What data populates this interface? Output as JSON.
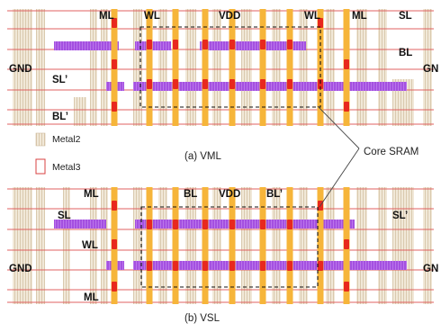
{
  "panels": [
    {
      "caption": "(a) VML",
      "labels": {
        "ml_left": "ML",
        "wl_left": "WL",
        "vdd": "VDD",
        "wl_right": "WL",
        "ml_right": "ML",
        "sl_right": "SL",
        "bl_right": "BL",
        "gnd_left": "GND",
        "gnd_right": "GN",
        "sl_prime": "SL’",
        "bl_prime": "BL’"
      }
    },
    {
      "caption": "(b) VSL",
      "labels": {
        "ml_top": "ML",
        "bl": "BL",
        "vdd": "VDD",
        "bl_prime": "BL’",
        "sl_left": "SL",
        "sl_prime_right": "SL’",
        "wl": "WL",
        "gnd_left": "GND",
        "gnd_right": "GN",
        "ml_bottom": "ML"
      }
    }
  ],
  "legend": {
    "metal2": "Metal2",
    "metal3": "Metal3"
  },
  "core_sram_label": "Core SRAM",
  "colors": {
    "metal2_fill": "#efe5d4",
    "metal2_hatch": "#d5c3a6",
    "metal3_line": "#e06060",
    "gate_orange": "#f6b53a",
    "contact_red": "#e8281e",
    "purple_bar": "#a450e0"
  }
}
